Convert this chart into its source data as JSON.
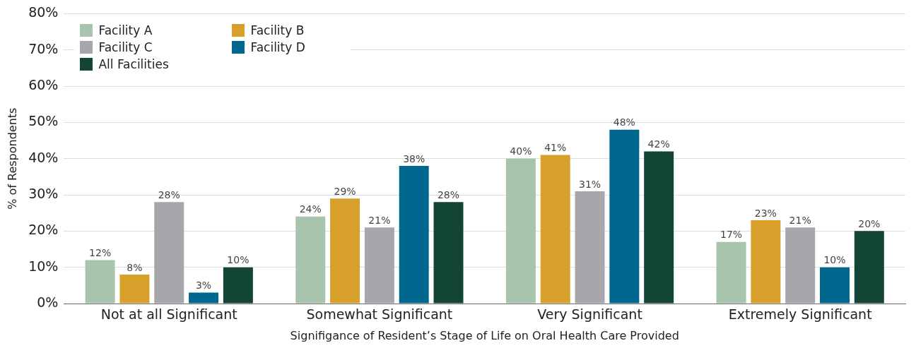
{
  "chart_data": {
    "type": "bar",
    "xlabel": "Signifigance of Resident’s Stage of Life on Oral Health Care Provided",
    "ylabel": "% of Respondents",
    "categories": [
      "Not at all Significant",
      "Somewhat Significant",
      "Very Significant",
      "Extremely Significant"
    ],
    "series": [
      {
        "name": "Facility A",
        "color": "#a8c4ad",
        "values": [
          12,
          24,
          40,
          17
        ],
        "value_labels": [
          "12%",
          "24%",
          "40%",
          "17%"
        ]
      },
      {
        "name": "Facility B",
        "color": "#d89f2a",
        "values": [
          8,
          29,
          41,
          23
        ],
        "value_labels": [
          "8%",
          "29%",
          "41%",
          "23%"
        ]
      },
      {
        "name": "Facility C",
        "color": "#a7a7ab",
        "values": [
          28,
          21,
          31,
          21
        ],
        "value_labels": [
          "28%",
          "21%",
          "31%",
          "21%"
        ]
      },
      {
        "name": "Facility D",
        "color": "#00678f",
        "values": [
          3,
          38,
          48,
          10
        ],
        "value_labels": [
          "3%",
          "38%",
          "48%",
          "10%"
        ]
      },
      {
        "name": "All Facilities",
        "color": "#134534",
        "values": [
          10,
          28,
          42,
          20
        ],
        "value_labels": [
          "10%",
          "28%",
          "42%",
          "20%"
        ]
      }
    ],
    "ylim": [
      0,
      80
    ],
    "yticks": [
      {
        "value": 0,
        "label": "0%"
      },
      {
        "value": 10,
        "label": "10%"
      },
      {
        "value": 20,
        "label": "20%"
      },
      {
        "value": 30,
        "label": "30%"
      },
      {
        "value": 40,
        "label": "40%"
      },
      {
        "value": 50,
        "label": "50%"
      },
      {
        "value": 60,
        "label": "60%"
      },
      {
        "value": 70,
        "label": "70%"
      },
      {
        "value": 80,
        "label": "80%"
      }
    ],
    "grid": "y",
    "legend": "top left"
  }
}
